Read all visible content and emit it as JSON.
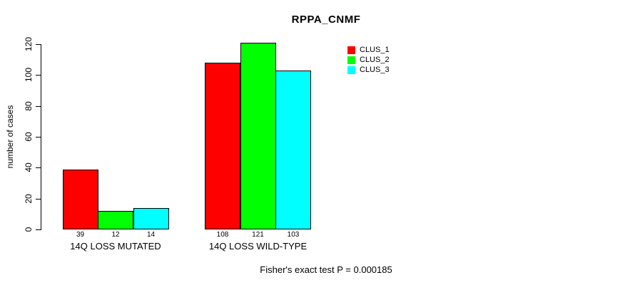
{
  "chart_data": {
    "type": "bar",
    "title": "RPPA_CNMF",
    "xlabel": "",
    "ylabel": "number of cases",
    "categories": [
      "14Q LOSS MUTATED",
      "14Q LOSS WILD-TYPE"
    ],
    "series": [
      {
        "name": "CLUS_1",
        "color": "#ff0000",
        "values": [
          39,
          108
        ]
      },
      {
        "name": "CLUS_2",
        "color": "#00ff00",
        "values": [
          12,
          121
        ]
      },
      {
        "name": "CLUS_3",
        "color": "#00ffff",
        "values": [
          14,
          103
        ]
      }
    ],
    "ylim": [
      0,
      120
    ],
    "yticks": [
      0,
      20,
      40,
      60,
      80,
      100,
      120
    ],
    "grid": false,
    "legend_position": "top-right",
    "bar_value_labels_shown": true,
    "bar_border_color": "#000000",
    "background_color": "#ffffff"
  },
  "footer": {
    "text": "Fisher's exact test P = 0.000185"
  }
}
